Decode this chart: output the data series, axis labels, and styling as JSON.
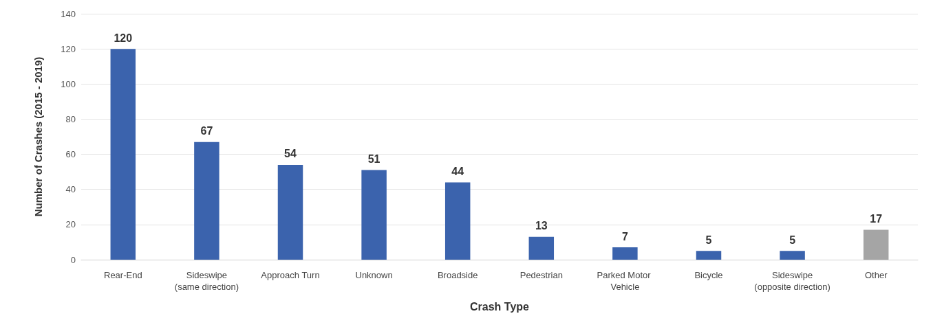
{
  "chart_data": {
    "type": "bar",
    "xlabel": "Crash Type",
    "ylabel": "Number of Crashes (2015 - 2019)",
    "categories": [
      "Rear-End",
      "Sideswipe (same direction)",
      "Approach Turn",
      "Unknown",
      "Broadside",
      "Pedestrian",
      "Parked Motor Vehicle",
      "Bicycle",
      "Sideswipe (opposite direction)",
      "Other"
    ],
    "values": [
      120,
      67,
      54,
      51,
      44,
      13,
      7,
      5,
      5,
      17
    ],
    "colors": [
      "#3b63ad",
      "#3b63ad",
      "#3b63ad",
      "#3b63ad",
      "#3b63ad",
      "#3b63ad",
      "#3b63ad",
      "#3b63ad",
      "#3b63ad",
      "#a5a5a5"
    ],
    "ylim": [
      0,
      140
    ],
    "yticks": [
      0,
      20,
      40,
      60,
      80,
      100,
      120,
      140
    ],
    "grid": "y",
    "data_labels": true
  }
}
